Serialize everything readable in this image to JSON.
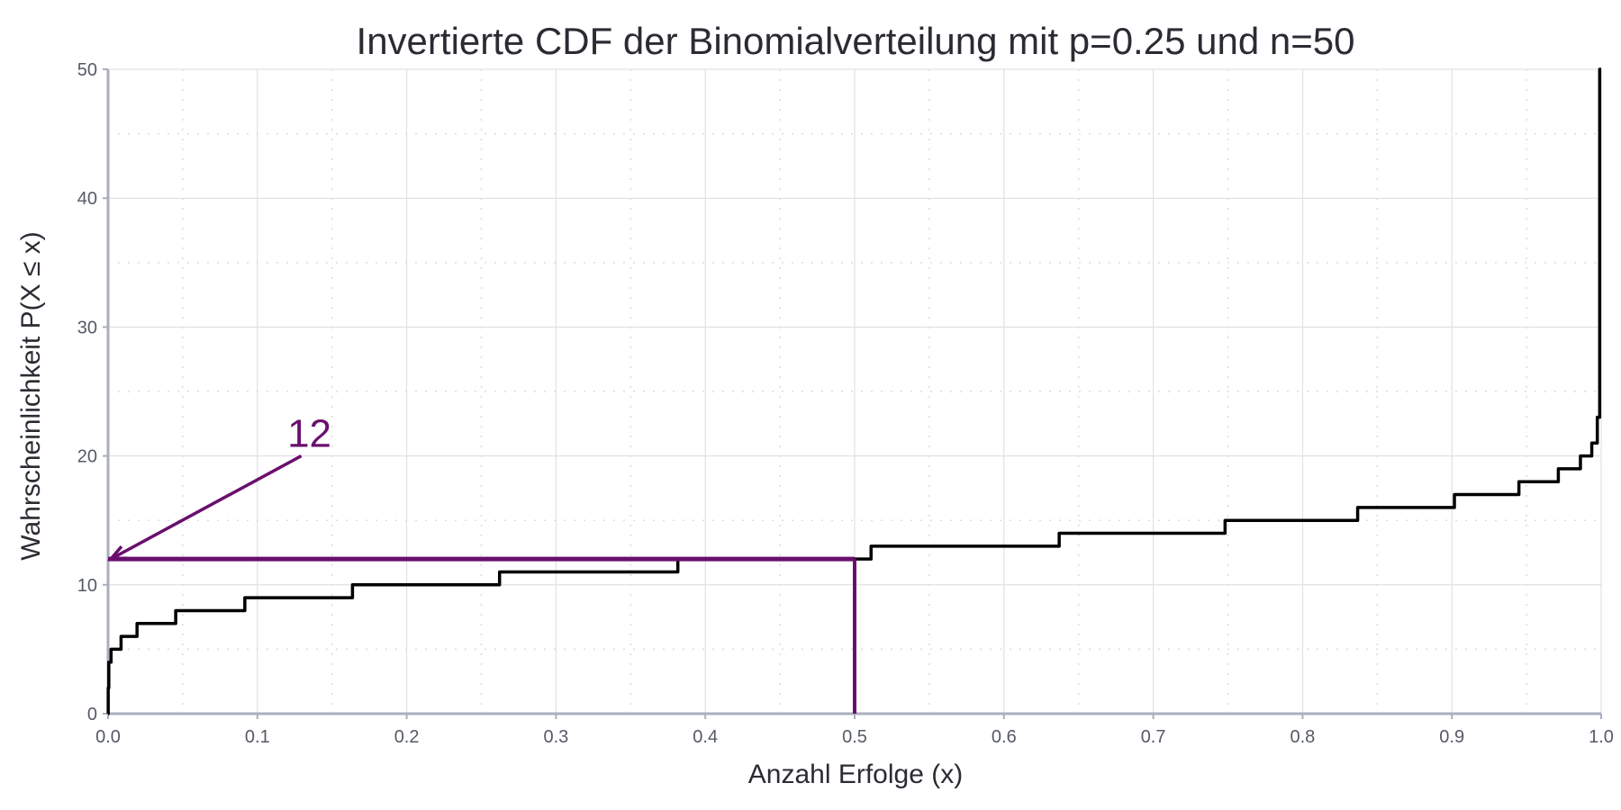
{
  "chart_data": {
    "type": "line",
    "title": "Invertierte CDF der Binomialverteilung mit p=0.25 und n=50",
    "xlabel": "Anzahl Erfolge (x)",
    "ylabel": "Wahrscheinlichkeit P(X ≤ x)",
    "xlim": [
      0,
      1
    ],
    "ylim": [
      0,
      50
    ],
    "x_ticks": [
      "0.0",
      "0.1",
      "0.2",
      "0.3",
      "0.4",
      "0.5",
      "0.6",
      "0.7",
      "0.8",
      "0.9",
      "1.0"
    ],
    "y_ticks": [
      "0",
      "10",
      "20",
      "30",
      "40",
      "50"
    ],
    "grid": true,
    "line_color": "#000000",
    "series": [
      {
        "step": "post",
        "x": [
          0.0,
          0.0001,
          0.0005,
          0.002,
          0.0087,
          0.0194,
          0.0453,
          0.0916,
          0.1637,
          0.2622,
          0.3816,
          0.511,
          0.637,
          0.7481,
          0.8369,
          0.9017,
          0.9449,
          0.9713,
          0.9861,
          0.9937,
          0.9974,
          0.999,
          1.0
        ],
        "y": [
          0,
          2,
          4,
          5,
          6,
          7,
          8,
          9,
          10,
          11,
          12,
          13,
          14,
          15,
          16,
          17,
          18,
          19,
          20,
          21,
          23,
          50,
          50
        ]
      }
    ],
    "annotation": {
      "text": "12",
      "color": "#6a0f6e",
      "point": [
        0.5,
        12
      ],
      "text_position": [
        0.13,
        20
      ]
    }
  }
}
